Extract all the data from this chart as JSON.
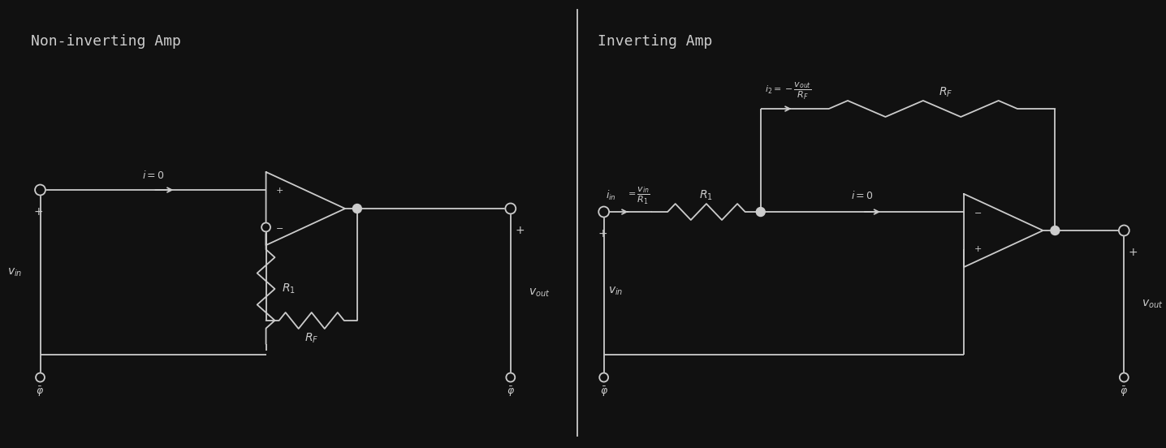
{
  "bg_color": "#111111",
  "line_color": "#cccccc",
  "text_color": "#cccccc",
  "title_left": "Non-inverting Amp",
  "title_right": "Inverting Amp",
  "fig_width": 14.36,
  "fig_height": 5.52,
  "lw": 1.3,
  "font_size_title": 13,
  "font_size_label": 10,
  "font_size_small": 9,
  "resistor_amp": 0.1,
  "resistor_segs": 5
}
